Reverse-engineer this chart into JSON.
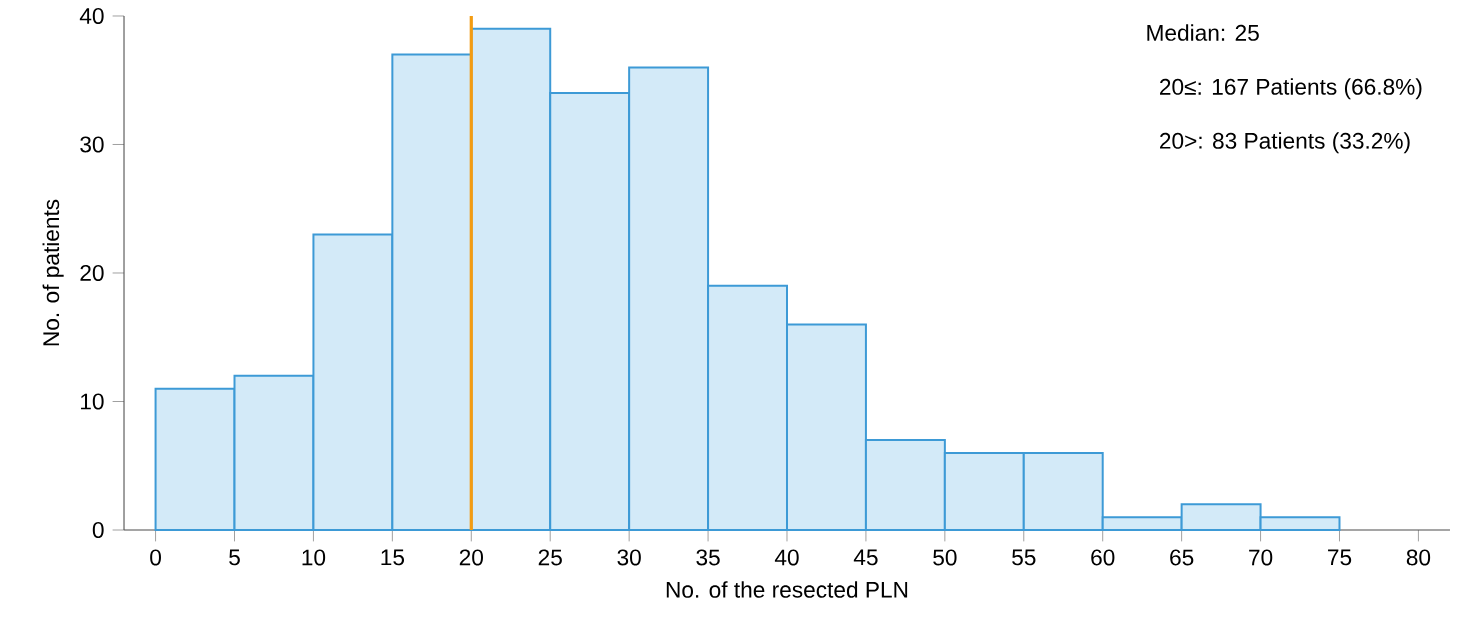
{
  "chart_data": {
    "type": "histogram",
    "xlabel": "No. of the resected PLN",
    "ylabel": "No. of patients",
    "bins": [
      0,
      5,
      10,
      15,
      20,
      25,
      30,
      35,
      40,
      45,
      50,
      55,
      60,
      65,
      70,
      75
    ],
    "values": [
      11,
      12,
      23,
      37,
      39,
      34,
      36,
      19,
      16,
      7,
      6,
      6,
      1,
      2,
      1
    ],
    "color": "#d3eaf8",
    "xlim": [
      -2,
      82
    ],
    "xticks": [
      0,
      5,
      10,
      15,
      20,
      25,
      30,
      35,
      40,
      45,
      50,
      55,
      60,
      65,
      70,
      75,
      80
    ],
    "ylim": [
      0,
      40
    ],
    "yticks": [
      0,
      10,
      20,
      30,
      40
    ],
    "ref_lines": [
      {
        "axis": "x",
        "value": 20,
        "color": "#f39c12"
      }
    ],
    "annotations": [
      "Median: 25",
      "20≤: 167 Patients (66.8%)",
      "20>: 83 Patients (33.2%)"
    ],
    "grid": false
  }
}
